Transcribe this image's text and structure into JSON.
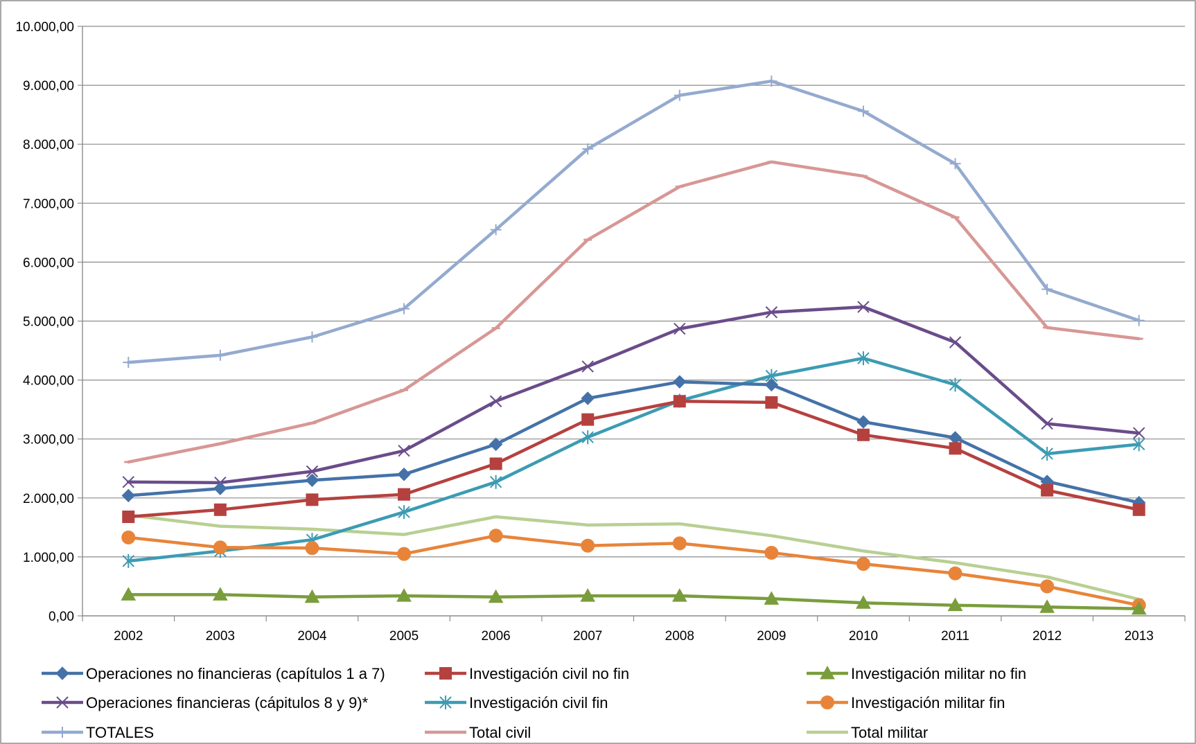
{
  "chart_data": {
    "type": "line",
    "categories": [
      "2002",
      "2003",
      "2004",
      "2005",
      "2006",
      "2007",
      "2008",
      "2009",
      "2010",
      "2011",
      "2012",
      "2013"
    ],
    "ylim": [
      0,
      10000
    ],
    "ytick_labels": [
      "0,00",
      "1.000,00",
      "2.000,00",
      "3.000,00",
      "4.000,00",
      "5.000,00",
      "6.000,00",
      "7.000,00",
      "8.000,00",
      "9.000,00",
      "10.000,00"
    ],
    "grid": true,
    "legend_position": "bottom",
    "title": "",
    "xlabel": "",
    "ylabel": "",
    "series": [
      {
        "name": "Operaciones no financieras (capítulos 1 a 7)",
        "color": "#4472A8",
        "marker": "diamond",
        "values": [
          2040,
          2160,
          2300,
          2400,
          2910,
          3690,
          3970,
          3920,
          3290,
          3020,
          2280,
          1920
        ]
      },
      {
        "name": "Investigación civil no fin",
        "color": "#B5413F",
        "marker": "square",
        "values": [
          1680,
          1800,
          1970,
          2060,
          2580,
          3330,
          3640,
          3620,
          3070,
          2840,
          2130,
          1800
        ]
      },
      {
        "name": "Investigación militar  no fin",
        "color": "#7A9D3C",
        "marker": "triangle",
        "values": [
          360,
          360,
          320,
          340,
          320,
          340,
          340,
          290,
          220,
          180,
          150,
          120
        ]
      },
      {
        "name": "Operaciones financieras (cápitulos 8 y 9)*",
        "color": "#6A4C8A",
        "marker": "x",
        "values": [
          2270,
          2260,
          2450,
          2800,
          3640,
          4230,
          4870,
          5150,
          5240,
          4640,
          3260,
          3100
        ]
      },
      {
        "name": "Investigación civil fin",
        "color": "#3C9BB3",
        "marker": "star",
        "values": [
          930,
          1100,
          1290,
          1760,
          2270,
          3030,
          3650,
          4070,
          4370,
          3920,
          2750,
          2910
        ]
      },
      {
        "name": "Investigación militar  fin",
        "color": "#E8843A",
        "marker": "circle",
        "values": [
          1330,
          1160,
          1150,
          1050,
          1360,
          1190,
          1230,
          1070,
          880,
          720,
          500,
          180
        ]
      },
      {
        "name": "TOTALES",
        "color": "#94AACF",
        "marker": "plus",
        "values": [
          4300,
          4420,
          4730,
          5210,
          6550,
          7920,
          8830,
          9070,
          8560,
          7670,
          5540,
          5010
        ]
      },
      {
        "name": "Total civil",
        "color": "#D79795",
        "marker": "dash",
        "values": [
          2610,
          2920,
          3270,
          3830,
          4880,
          6380,
          7280,
          7700,
          7460,
          6760,
          4890,
          4700
        ]
      },
      {
        "name": "Total militar",
        "color": "#B8CF92",
        "marker": "dash",
        "values": [
          1710,
          1520,
          1470,
          1380,
          1680,
          1540,
          1560,
          1360,
          1100,
          900,
          660,
          280
        ]
      }
    ]
  }
}
